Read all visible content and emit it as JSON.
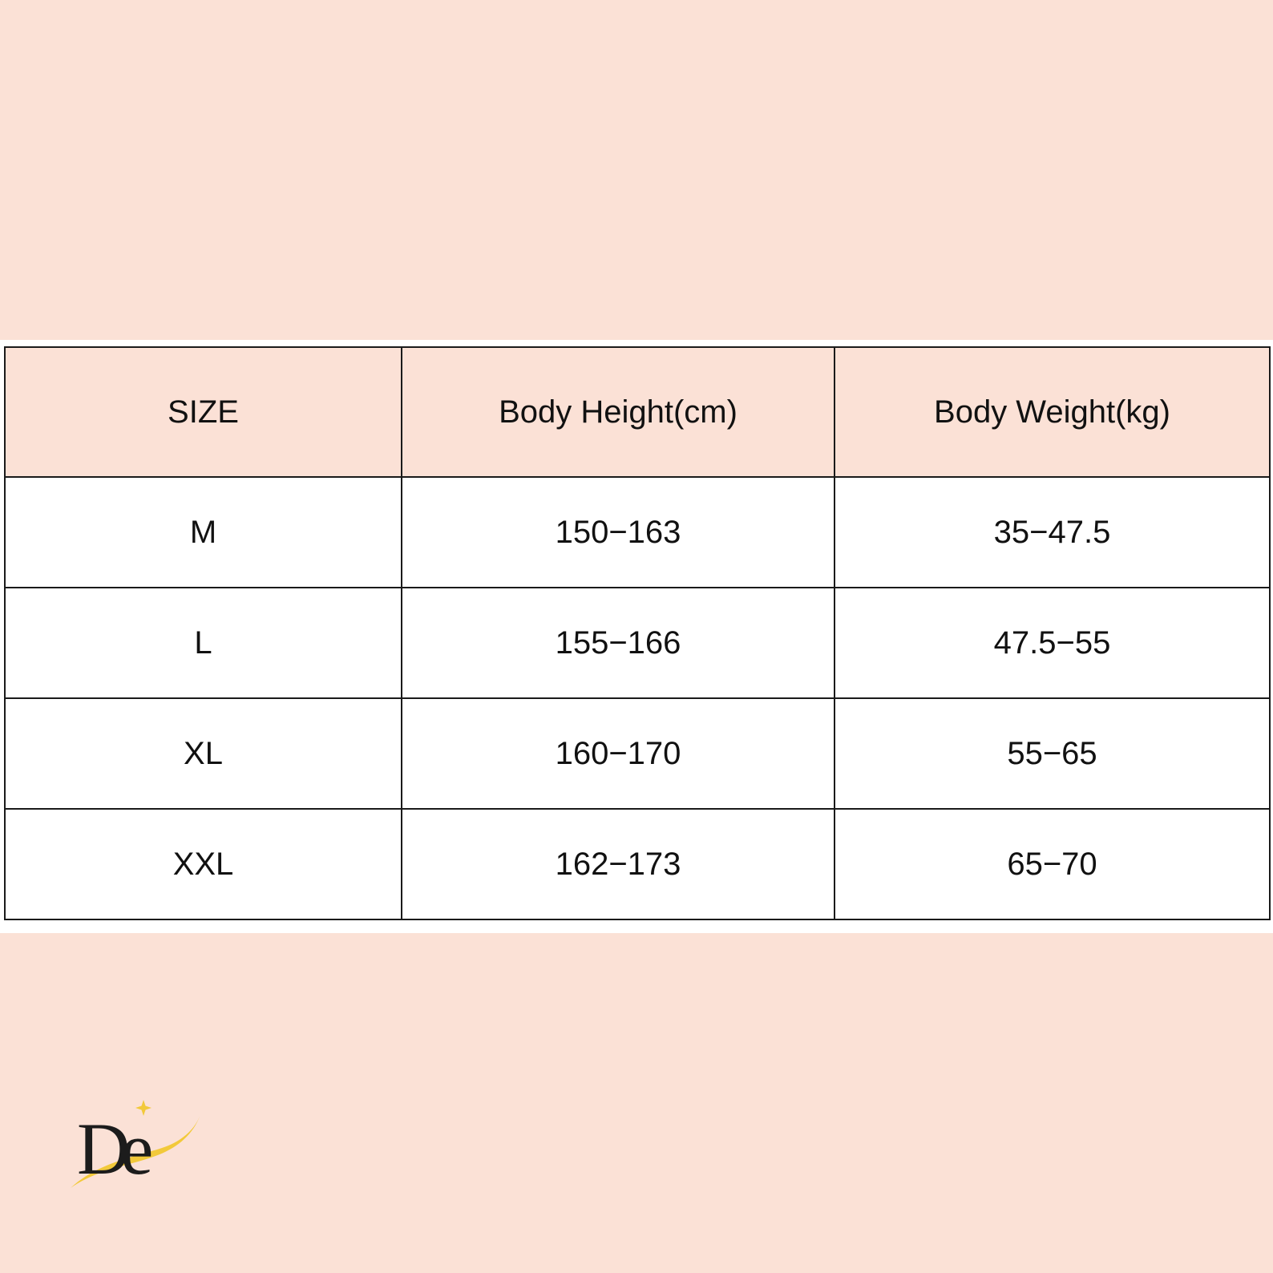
{
  "table": {
    "headers": [
      "SIZE",
      "Body Height(cm)",
      "Body Weight(kg)"
    ],
    "rows": [
      [
        "M",
        "150−163",
        "35−47.5"
      ],
      [
        "L",
        "155−166",
        "47.5−55"
      ],
      [
        "XL",
        "160−170",
        "55−65"
      ],
      [
        "XXL",
        "162−173",
        "65−70"
      ]
    ]
  },
  "logo": {
    "text": "De",
    "icon": "brand-logo-icon",
    "accent_color": "#f2c93a"
  },
  "colors": {
    "background": "#fbe1d6",
    "header_fill": "#fbe1d6",
    "body_fill": "#ffffff",
    "border": "#1a1a1a"
  }
}
